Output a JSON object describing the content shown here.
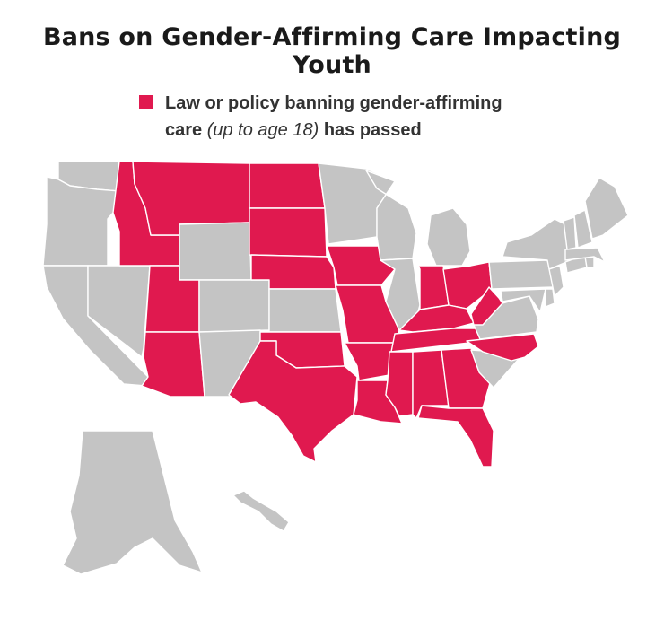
{
  "title": "Bans on Gender-Affirming Care Impacting Youth",
  "legend": {
    "line1": "Law or policy banning gender-affirming",
    "line2_start": "care",
    "line2_em": "(up to age 18)",
    "line2_end": "has passed"
  },
  "colors": {
    "ban": "#e0194f",
    "no_ban": "#c4c4c4"
  },
  "states": [
    {
      "id": "WA",
      "status": "no_ban"
    },
    {
      "id": "OR",
      "status": "no_ban"
    },
    {
      "id": "CA",
      "status": "no_ban"
    },
    {
      "id": "NV",
      "status": "no_ban"
    },
    {
      "id": "ID",
      "status": "ban"
    },
    {
      "id": "MT",
      "status": "ban"
    },
    {
      "id": "WY",
      "status": "no_ban"
    },
    {
      "id": "UT",
      "status": "ban"
    },
    {
      "id": "AZ",
      "status": "ban"
    },
    {
      "id": "CO",
      "status": "no_ban"
    },
    {
      "id": "NM",
      "status": "no_ban"
    },
    {
      "id": "ND",
      "status": "ban"
    },
    {
      "id": "SD",
      "status": "ban"
    },
    {
      "id": "NE",
      "status": "ban"
    },
    {
      "id": "KS",
      "status": "no_ban"
    },
    {
      "id": "OK",
      "status": "ban"
    },
    {
      "id": "TX",
      "status": "ban"
    },
    {
      "id": "MN",
      "status": "no_ban"
    },
    {
      "id": "IA",
      "status": "ban"
    },
    {
      "id": "MO",
      "status": "ban"
    },
    {
      "id": "AR",
      "status": "ban"
    },
    {
      "id": "LA",
      "status": "ban"
    },
    {
      "id": "WI",
      "status": "no_ban"
    },
    {
      "id": "IL",
      "status": "no_ban"
    },
    {
      "id": "MI",
      "status": "no_ban"
    },
    {
      "id": "IN",
      "status": "ban"
    },
    {
      "id": "OH",
      "status": "ban"
    },
    {
      "id": "KY",
      "status": "ban"
    },
    {
      "id": "TN",
      "status": "ban"
    },
    {
      "id": "MS",
      "status": "ban"
    },
    {
      "id": "AL",
      "status": "ban"
    },
    {
      "id": "GA",
      "status": "ban"
    },
    {
      "id": "FL",
      "status": "ban"
    },
    {
      "id": "SC",
      "status": "no_ban"
    },
    {
      "id": "NC",
      "status": "ban"
    },
    {
      "id": "VA",
      "status": "no_ban"
    },
    {
      "id": "WV",
      "status": "ban"
    },
    {
      "id": "PA",
      "status": "no_ban"
    },
    {
      "id": "NY",
      "status": "no_ban"
    },
    {
      "id": "MD",
      "status": "no_ban"
    },
    {
      "id": "DE",
      "status": "no_ban"
    },
    {
      "id": "NJ",
      "status": "no_ban"
    },
    {
      "id": "CT",
      "status": "no_ban"
    },
    {
      "id": "RI",
      "status": "no_ban"
    },
    {
      "id": "MA",
      "status": "no_ban"
    },
    {
      "id": "VT",
      "status": "no_ban"
    },
    {
      "id": "NH",
      "status": "no_ban"
    },
    {
      "id": "ME",
      "status": "no_ban"
    },
    {
      "id": "AK",
      "status": "no_ban"
    },
    {
      "id": "HI",
      "status": "no_ban"
    }
  ]
}
